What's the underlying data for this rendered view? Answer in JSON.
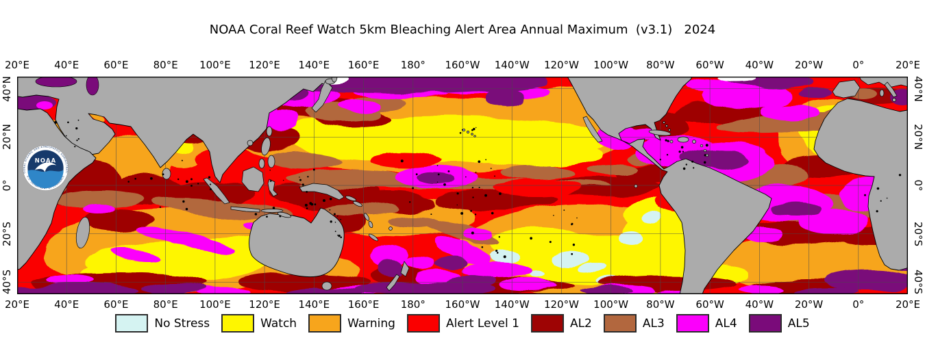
{
  "title": "NOAA Coral Reef Watch 5km Bleaching Alert Area Annual Maximum  (v3.1)   2024",
  "axes": {
    "top": [
      "20°E",
      "40°E",
      "60°E",
      "80°E",
      "100°E",
      "120°E",
      "140°E",
      "160°E",
      "180°",
      "160°W",
      "140°W",
      "120°W",
      "100°W",
      "80°W",
      "60°W",
      "40°W",
      "20°W",
      "0°",
      "20°E"
    ],
    "bottom": [
      "20°E",
      "40°E",
      "60°E",
      "80°E",
      "100°E",
      "120°E",
      "140°E",
      "160°E",
      "180°",
      "160°W",
      "140°W",
      "120°W",
      "100°W",
      "80°W",
      "60°W",
      "40°W",
      "20°W",
      "0°",
      "20°E"
    ],
    "left": [
      "40°N",
      "20°N",
      "0°",
      "20°S",
      "40°S"
    ],
    "right": [
      "40°N",
      "20°N",
      "0°",
      "20°S",
      "40°S"
    ]
  },
  "legend": {
    "items": [
      {
        "key": "ns",
        "label": "No Stress",
        "color": "#d5f3f2"
      },
      {
        "key": "watch",
        "label": "Watch",
        "color": "#fef600"
      },
      {
        "key": "warning",
        "label": "Warning",
        "color": "#f7a51c"
      },
      {
        "key": "al1",
        "label": "Alert Level 1",
        "color": "#fa0000"
      },
      {
        "key": "al2",
        "label": "AL2",
        "color": "#9e0404"
      },
      {
        "key": "al3",
        "label": "AL3",
        "color": "#b2673e"
      },
      {
        "key": "al4",
        "label": "AL4",
        "color": "#fb00fb"
      },
      {
        "key": "al5",
        "label": "AL5",
        "color": "#7a0b7a"
      }
    ]
  },
  "map": {
    "land_color": "#ababab",
    "grid_color": "#4a4a4a",
    "frame_color": "#000000"
  },
  "logo": {
    "name": "NOAA",
    "ring_top": "NATIONAL OCEANIC AND ATMOSPHERIC ADMINISTRATION",
    "ring_bottom": "U.S. DEPARTMENT OF COMMERCE"
  }
}
